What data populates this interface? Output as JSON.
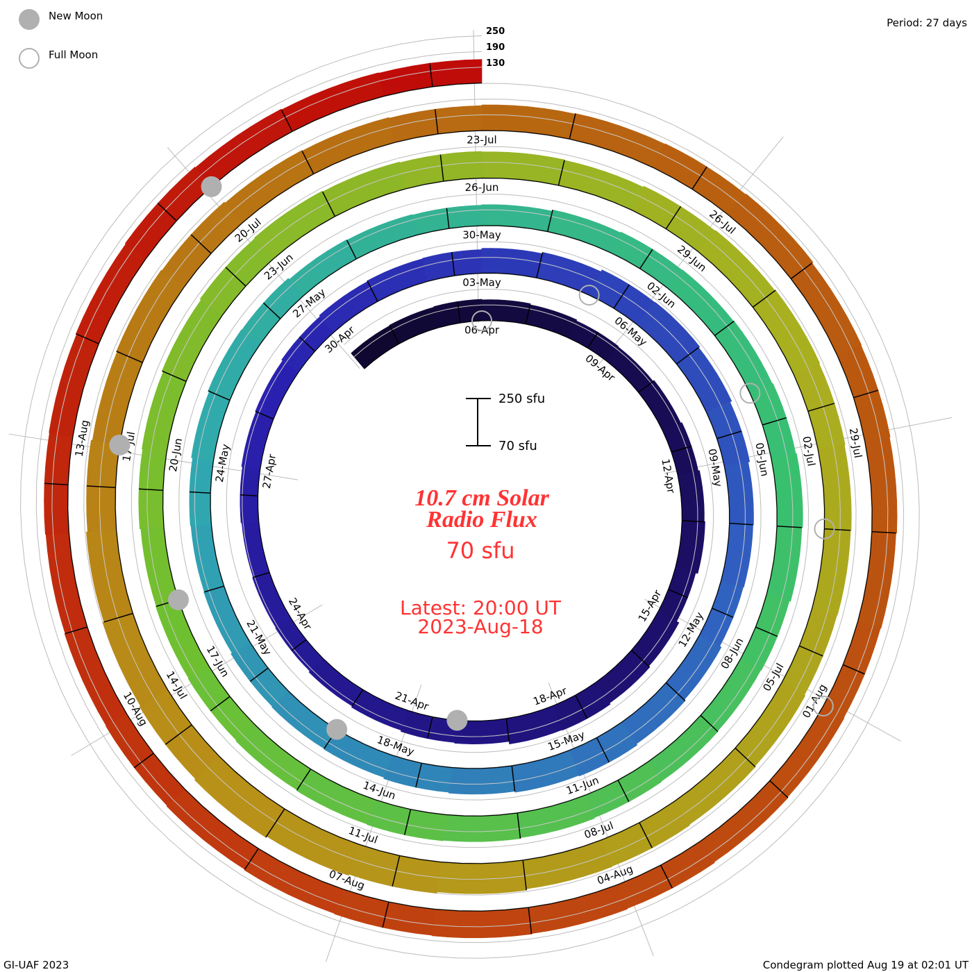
{
  "legend": {
    "new_moon": "New Moon",
    "full_moon": "Full Moon",
    "new_moon_color": "#b0b0b0",
    "full_moon_color": "#b0b0b0"
  },
  "period_label": "Period: 27 days",
  "scale_bar": {
    "top": "250 sfu",
    "bottom": "70 sfu"
  },
  "center": {
    "title_line1": "10.7 cm Solar",
    "title_line2": "Radio Flux",
    "baseline": "70 sfu",
    "latest_line1": "Latest: 20:00 UT",
    "latest_line2": "2023-Aug-18",
    "text_color": "#ff3333"
  },
  "footer": {
    "left": "GI-UAF 2023",
    "right": "Condegram plotted Aug 19 at 02:01 UT"
  },
  "chart_data": {
    "type": "condegram-spiral",
    "title": "10.7 cm Solar Radio Flux",
    "unit": "sfu",
    "period_days": 27,
    "start_date": "2023-Apr-03",
    "end_date": "2023-Aug-18",
    "baseline_sfu": 70,
    "scale_max_sfu": 250,
    "level_labels": [
      "250",
      "190",
      "130"
    ],
    "levels": [
      250,
      190,
      130
    ],
    "daily_flux": [
      148,
      150,
      152,
      150,
      146,
      142,
      140,
      145,
      150,
      155,
      158,
      150,
      160,
      165,
      170,
      168,
      158,
      155,
      150,
      145,
      140,
      138,
      135,
      138,
      142,
      145,
      150,
      155,
      158,
      160,
      165,
      170,
      178,
      180,
      175,
      168,
      162,
      160,
      158,
      165,
      170,
      175,
      172,
      168,
      165,
      160,
      158,
      155,
      150,
      148,
      150,
      155,
      160,
      158,
      152,
      150,
      148,
      150,
      155,
      158,
      160,
      162,
      165,
      168,
      165,
      160,
      158,
      160,
      162,
      165,
      168,
      170,
      168,
      165,
      162,
      160,
      158,
      162,
      165,
      170,
      175,
      178,
      175,
      172,
      170,
      168,
      172,
      175,
      178,
      175,
      172,
      170,
      168,
      172,
      175,
      178,
      180,
      185,
      190,
      195,
      200,
      195,
      190,
      185,
      180,
      175,
      178,
      175,
      170,
      168,
      165,
      168,
      170,
      172,
      175,
      170,
      168,
      165,
      162,
      160,
      162,
      165,
      168,
      170,
      172,
      170,
      168,
      165,
      162,
      160,
      158,
      160,
      162,
      165,
      168,
      165,
      162,
      160
    ],
    "date_labels": [
      {
        "text": "06-Apr",
        "day": 3
      },
      {
        "text": "09-Apr",
        "day": 6
      },
      {
        "text": "12-Apr",
        "day": 9
      },
      {
        "text": "15-Apr",
        "day": 12
      },
      {
        "text": "18-Apr",
        "day": 15
      },
      {
        "text": "21-Apr",
        "day": 18
      },
      {
        "text": "24-Apr",
        "day": 21
      },
      {
        "text": "27-Apr",
        "day": 24
      },
      {
        "text": "30-Apr",
        "day": 27
      },
      {
        "text": "03-May",
        "day": 30
      },
      {
        "text": "06-May",
        "day": 33
      },
      {
        "text": "09-May",
        "day": 36
      },
      {
        "text": "12-May",
        "day": 39
      },
      {
        "text": "15-May",
        "day": 42
      },
      {
        "text": "18-May",
        "day": 45
      },
      {
        "text": "21-May",
        "day": 48
      },
      {
        "text": "24-May",
        "day": 51
      },
      {
        "text": "27-May",
        "day": 54
      },
      {
        "text": "30-May",
        "day": 57
      },
      {
        "text": "02-Jun",
        "day": 60
      },
      {
        "text": "05-Jun",
        "day": 63
      },
      {
        "text": "08-Jun",
        "day": 66
      },
      {
        "text": "11-Jun",
        "day": 69
      },
      {
        "text": "14-Jun",
        "day": 72
      },
      {
        "text": "17-Jun",
        "day": 75
      },
      {
        "text": "20-Jun",
        "day": 78
      },
      {
        "text": "23-Jun",
        "day": 81
      },
      {
        "text": "26-Jun",
        "day": 84
      },
      {
        "text": "29-Jun",
        "day": 87
      },
      {
        "text": "02-Jul",
        "day": 90
      },
      {
        "text": "05-Jul",
        "day": 93
      },
      {
        "text": "08-Jul",
        "day": 96
      },
      {
        "text": "11-Jul",
        "day": 99
      },
      {
        "text": "14-Jul",
        "day": 102
      },
      {
        "text": "17-Jul",
        "day": 105
      },
      {
        "text": "20-Jul",
        "day": 108
      },
      {
        "text": "23-Jul",
        "day": 111
      },
      {
        "text": "26-Jul",
        "day": 114
      },
      {
        "text": "29-Jul",
        "day": 117
      },
      {
        "text": "01-Aug",
        "day": 120
      },
      {
        "text": "04-Aug",
        "day": 123
      },
      {
        "text": "07-Aug",
        "day": 126
      },
      {
        "text": "10-Aug",
        "day": 129
      },
      {
        "text": "13-Aug",
        "day": 132
      }
    ],
    "new_moon_days": [
      17,
      46,
      76,
      105,
      135
    ],
    "full_moon_days": [
      3,
      32,
      62,
      91,
      120
    ],
    "color_stops": [
      "#100830",
      "#1e1070",
      "#2a20b0",
      "#3060c0",
      "#30a8b0",
      "#38c070",
      "#70c030",
      "#a8b020",
      "#b89018",
      "#b86010",
      "#c04010",
      "#c00808"
    ]
  }
}
